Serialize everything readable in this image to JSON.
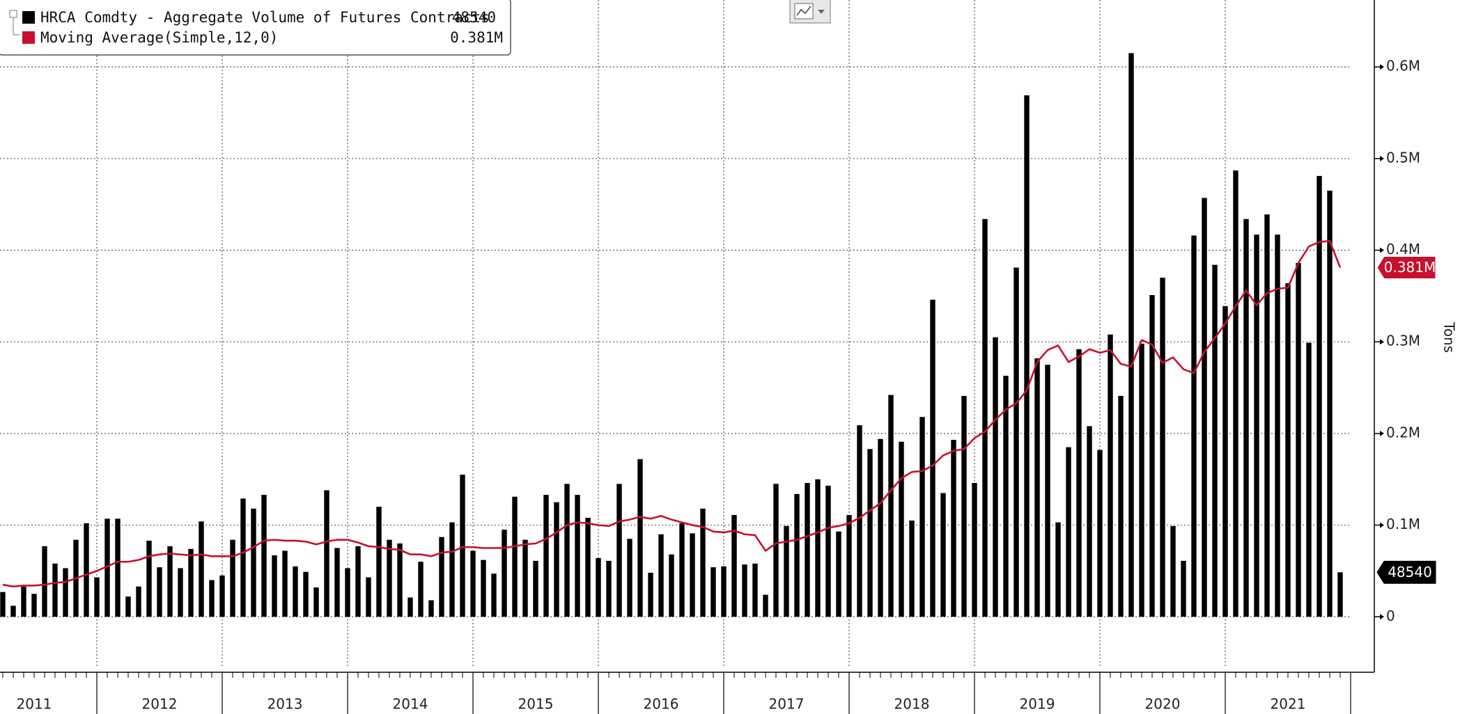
{
  "chart_data": {
    "type": "bar",
    "x_labels": [
      "2011",
      "2012",
      "2013",
      "2014",
      "2015",
      "2016",
      "2017",
      "2018",
      "2019",
      "2020",
      "2021"
    ],
    "y_axis_label": "Tons",
    "ylim": [
      -56000,
      673000
    ],
    "yticks": [
      0,
      {
        "value": 100000,
        "label": "0.1M"
      },
      {
        "value": 200000,
        "label": "0.2M"
      },
      {
        "value": 300000,
        "label": "0.3M"
      },
      {
        "value": 400000,
        "label": "0.4M"
      },
      {
        "value": 500000,
        "label": "0.5M"
      },
      {
        "value": 600000,
        "label": "0.6M"
      }
    ],
    "grid": true,
    "series": [
      {
        "name": "HRCA Comdty - Aggregate Volume of Futures Contracts",
        "color": "#000000",
        "type": "bar",
        "values": [
          27000,
          12000,
          33000,
          25000,
          77000,
          58000,
          53000,
          84000,
          102000,
          43000,
          107000,
          107000,
          22000,
          33000,
          83000,
          54000,
          77000,
          53000,
          74000,
          104000,
          40000,
          45000,
          84000,
          129000,
          118000,
          133000,
          67000,
          72000,
          55000,
          49000,
          32000,
          138000,
          75000,
          53000,
          77000,
          43000,
          120000,
          84000,
          80000,
          21000,
          60000,
          18000,
          87000,
          103000,
          155000,
          72000,
          62000,
          47000,
          95000,
          131000,
          84000,
          61000,
          133000,
          125000,
          145000,
          133000,
          108000,
          64000,
          61000,
          145000,
          85000,
          172000,
          48000,
          90000,
          68000,
          102000,
          91000,
          118000,
          54000,
          55000,
          111000,
          57000,
          58000,
          24000,
          145000,
          99000,
          134000,
          146000,
          150000,
          143000,
          93000,
          111000,
          209000,
          183000,
          194000,
          242000,
          191000,
          105000,
          218000,
          346000,
          135000,
          193000,
          241000,
          146000,
          434000,
          305000,
          263000,
          381000,
          569000,
          282000,
          275000,
          103000,
          185000,
          292000,
          208000,
          182000,
          308000,
          241000,
          615000,
          298000,
          351000,
          370000,
          99000,
          61000,
          416000,
          457000,
          384000,
          339000,
          487000,
          434000,
          417000,
          439000,
          417000,
          364000,
          386000,
          299000,
          481000,
          465000,
          48540
        ]
      },
      {
        "name": "Moving Average(Simple,12,0)",
        "color": "#c8102e",
        "type": "line",
        "last_value_label": "0.381M",
        "values": [
          35000,
          33000,
          34000,
          34000,
          35000,
          37000,
          38000,
          42000,
          46000,
          50000,
          55000,
          60000,
          60000,
          62000,
          66000,
          68000,
          69000,
          68000,
          67000,
          68000,
          66000,
          66000,
          66000,
          70000,
          76000,
          83000,
          84000,
          83000,
          83000,
          82000,
          79000,
          82000,
          84000,
          84000,
          81000,
          77000,
          76000,
          74000,
          73000,
          68000,
          68000,
          66000,
          70000,
          71000,
          76000,
          76000,
          75000,
          75000,
          75000,
          77000,
          79000,
          80000,
          85000,
          92000,
          100000,
          103000,
          102000,
          100000,
          99000,
          104000,
          106000,
          109000,
          107000,
          110000,
          106000,
          103000,
          100000,
          98000,
          93000,
          92000,
          94000,
          90000,
          89000,
          72000,
          80000,
          82000,
          84000,
          88000,
          92000,
          97000,
          99000,
          102000,
          108000,
          116000,
          124000,
          138000,
          151000,
          158000,
          159000,
          165000,
          176000,
          181000,
          183000,
          195000,
          202000,
          215000,
          226000,
          233000,
          247000,
          278000,
          291000,
          296000,
          278000,
          284000,
          292000,
          288000,
          291000,
          276000,
          273000,
          302000,
          297000,
          277000,
          283000,
          270000,
          266000,
          289000,
          304000,
          320000,
          339000,
          356000,
          340000,
          353000,
          358000,
          359000,
          386000,
          404000,
          409000,
          410000,
          381000
        ]
      }
    ]
  }
}
